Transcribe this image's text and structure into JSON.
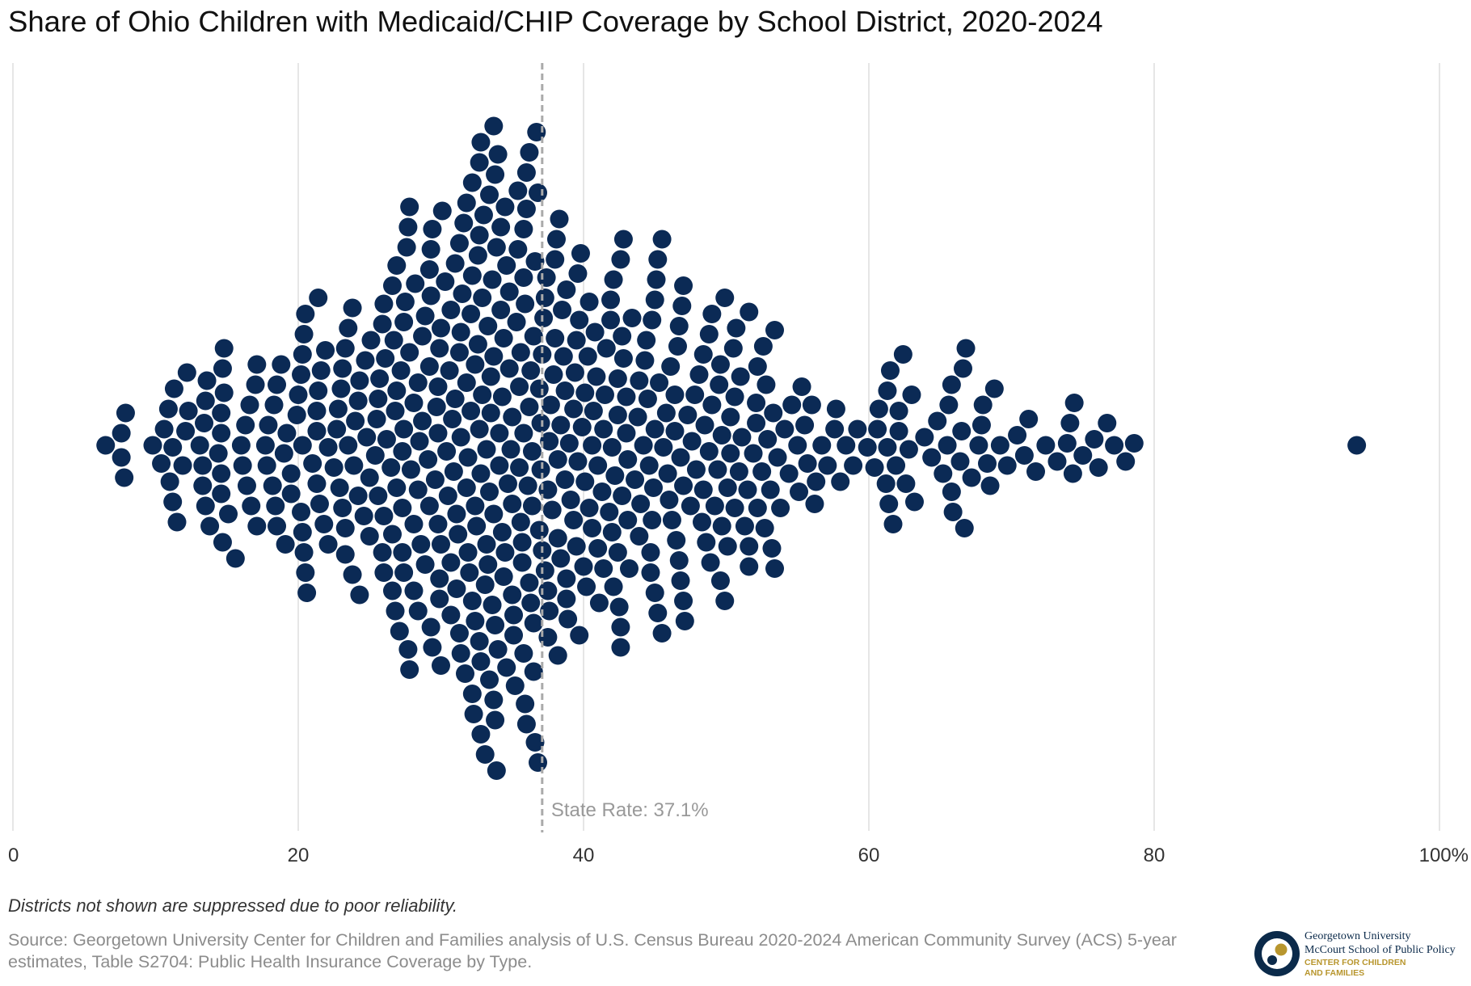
{
  "page": {
    "title": "Share of Ohio Children with Medicaid/CHIP Coverage by School District, 2020-2024",
    "note": "Districts not shown are suppressed due to poor reliability.",
    "source": "Source: Georgetown University Center for Children and Families analysis of U.S. Census Bureau 2020-2024 American Community Survey (ACS) 5-year estimates, Table S2704: Public Health Insurance Coverage by Type.",
    "logo": {
      "line1": "Georgetown University",
      "line2": "McCourt School of Public Policy",
      "line3": "CENTER FOR CHILDREN",
      "line4": "AND FAMILIES"
    }
  },
  "colors": {
    "dot": "#0b2a55",
    "grid": "#dddddd",
    "reference": "#aaaaaa",
    "logo_navy": "#0b2a4a",
    "logo_gold": "#b8962e"
  },
  "chart_data": {
    "type": "scatter",
    "subtype": "beeswarm",
    "title": "Share of Ohio Children with Medicaid/CHIP Coverage by School District, 2020-2024",
    "xlabel": "",
    "ylabel": "",
    "xlim": [
      0,
      100
    ],
    "ticks": [
      0,
      20,
      40,
      60,
      80,
      100
    ],
    "tick_labels": [
      "0",
      "20",
      "40",
      "60",
      "80",
      "100%"
    ],
    "grid": true,
    "reference_line": {
      "value": 37.1,
      "label": "State Rate: 37.1%"
    },
    "n_districts": 600,
    "summary": {
      "min": 6.5,
      "max": 94.2,
      "bulk_range": [
        10,
        55
      ],
      "highest_outlier": 94.2
    },
    "values": [
      6.5,
      7.6,
      7.6,
      7.8,
      7.9,
      9.8,
      10.4,
      10.6,
      10.9,
      11.0,
      11.2,
      11.2,
      11.3,
      11.5,
      11.9,
      12.1,
      12.2,
      12.3,
      13.1,
      13.3,
      13.3,
      13.4,
      13.5,
      13.5,
      13.6,
      13.8,
      14.4,
      14.6,
      14.6,
      14.6,
      14.6,
      14.7,
      14.7,
      14.8,
      14.8,
      15.1,
      15.6,
      16.0,
      16.1,
      16.3,
      16.4,
      16.6,
      16.7,
      17.0,
      17.1,
      17.1,
      17.7,
      17.8,
      17.9,
      18.2,
      18.3,
      18.4,
      18.5,
      18.5,
      18.8,
      19.0,
      19.1,
      19.2,
      19.5,
      19.5,
      19.9,
      20.0,
      20.2,
      20.2,
      20.3,
      20.3,
      20.3,
      20.4,
      20.4,
      20.5,
      20.5,
      20.6,
      21.0,
      21.3,
      21.3,
      21.3,
      21.4,
      21.4,
      21.5,
      21.6,
      21.8,
      21.9,
      22.1,
      22.1,
      22.5,
      22.7,
      22.8,
      22.9,
      23.0,
      23.1,
      23.1,
      23.3,
      23.3,
      23.3,
      23.5,
      23.5,
      23.8,
      23.8,
      23.9,
      24.0,
      24.2,
      24.2,
      24.3,
      24.3,
      24.6,
      24.7,
      24.8,
      25.0,
      25.0,
      25.1,
      25.4,
      25.5,
      25.6,
      25.6,
      25.7,
      25.9,
      25.9,
      26.0,
      26.0,
      26.0,
      26.1,
      26.2,
      26.5,
      26.6,
      26.6,
      26.6,
      26.7,
      26.8,
      26.8,
      26.9,
      26.9,
      26.9,
      27.1,
      27.2,
      27.3,
      27.3,
      27.3,
      27.4,
      27.4,
      27.4,
      27.5,
      27.6,
      27.7,
      27.7,
      27.8,
      27.8,
      27.8,
      27.9,
      28.1,
      28.1,
      28.1,
      28.2,
      28.4,
      28.4,
      28.4,
      28.5,
      28.6,
      28.7,
      28.7,
      28.9,
      28.9,
      29.1,
      29.2,
      29.2,
      29.2,
      29.3,
      29.3,
      29.3,
      29.4,
      29.4,
      29.6,
      29.7,
      29.8,
      29.8,
      29.8,
      29.9,
      29.9,
      29.9,
      30.0,
      30.0,
      30.0,
      30.1,
      30.3,
      30.4,
      30.5,
      30.6,
      30.7,
      30.7,
      30.7,
      30.8,
      30.9,
      31.0,
      31.0,
      31.1,
      31.1,
      31.2,
      31.3,
      31.3,
      31.3,
      31.4,
      31.4,
      31.4,
      31.5,
      31.6,
      31.7,
      31.8,
      31.8,
      31.8,
      31.9,
      31.9,
      32.0,
      32.1,
      32.1,
      32.2,
      32.2,
      32.2,
      32.2,
      32.3,
      32.4,
      32.4,
      32.4,
      32.5,
      32.6,
      32.6,
      32.7,
      32.7,
      32.7,
      32.7,
      32.8,
      32.8,
      32.8,
      32.8,
      32.9,
      32.9,
      33.0,
      33.1,
      33.1,
      33.2,
      33.2,
      33.3,
      33.3,
      33.4,
      33.4,
      33.4,
      33.5,
      33.5,
      33.6,
      33.6,
      33.7,
      33.7,
      33.7,
      33.7,
      33.8,
      33.8,
      33.8,
      33.9,
      33.9,
      34.0,
      34.0,
      34.1,
      34.1,
      34.2,
      34.2,
      34.3,
      34.3,
      34.4,
      34.4,
      34.5,
      34.5,
      34.6,
      34.6,
      34.7,
      34.8,
      34.8,
      34.9,
      35.0,
      35.0,
      35.0,
      35.1,
      35.1,
      35.2,
      35.3,
      35.4,
      35.4,
      35.5,
      35.5,
      35.6,
      35.6,
      35.7,
      35.7,
      35.8,
      35.8,
      35.8,
      35.8,
      35.9,
      35.9,
      36.0,
      36.0,
      36.0,
      36.1,
      36.2,
      36.2,
      36.2,
      36.3,
      36.3,
      36.4,
      36.4,
      36.5,
      36.5,
      36.5,
      36.6,
      36.6,
      36.7,
      36.8,
      36.8,
      36.9,
      36.9,
      37.0,
      37.0,
      37.1,
      37.1,
      37.2,
      37.3,
      37.3,
      37.4,
      37.5,
      37.5,
      37.5,
      37.6,
      37.6,
      37.7,
      37.8,
      37.9,
      38.0,
      38.0,
      38.1,
      38.2,
      38.2,
      38.2,
      38.3,
      38.4,
      38.4,
      38.5,
      38.6,
      38.7,
      38.7,
      38.8,
      38.8,
      38.8,
      38.9,
      39.0,
      39.1,
      39.3,
      39.3,
      39.4,
      39.5,
      39.5,
      39.6,
      39.6,
      39.7,
      39.7,
      39.8,
      39.9,
      40.0,
      40.1,
      40.1,
      40.2,
      40.3,
      40.4,
      40.4,
      40.6,
      40.6,
      40.7,
      40.8,
      40.9,
      41.0,
      41.0,
      41.1,
      41.3,
      41.4,
      41.4,
      41.5,
      41.6,
      41.8,
      41.9,
      41.9,
      42.0,
      42.0,
      42.1,
      42.1,
      42.2,
      42.4,
      42.4,
      42.4,
      42.5,
      42.6,
      42.6,
      42.6,
      42.7,
      42.7,
      42.8,
      42.8,
      43.0,
      43.0,
      43.1,
      43.1,
      43.2,
      43.4,
      43.6,
      43.8,
      43.9,
      43.9,
      44.0,
      44.2,
      44.3,
      44.4,
      44.5,
      44.6,
      44.7,
      44.7,
      44.8,
      44.8,
      44.9,
      45.0,
      45.0,
      45.0,
      45.1,
      45.2,
      45.2,
      45.3,
      45.5,
      45.5,
      45.6,
      45.8,
      45.9,
      46.0,
      46.1,
      46.2,
      46.4,
      46.4,
      46.5,
      46.6,
      46.7,
      46.7,
      46.8,
      46.8,
      46.9,
      47.0,
      47.0,
      47.0,
      47.1,
      47.3,
      47.5,
      47.6,
      47.8,
      47.9,
      48.1,
      48.3,
      48.4,
      48.4,
      48.5,
      48.6,
      48.8,
      48.8,
      48.9,
      49.0,
      49.0,
      49.2,
      49.4,
      49.5,
      49.6,
      49.6,
      49.7,
      49.7,
      49.9,
      49.9,
      50.1,
      50.1,
      50.3,
      50.3,
      50.5,
      50.6,
      50.6,
      50.7,
      50.9,
      51.0,
      51.1,
      51.3,
      51.5,
      51.6,
      51.6,
      51.6,
      51.9,
      52.1,
      52.1,
      52.2,
      52.2,
      52.5,
      52.6,
      52.7,
      52.8,
      52.9,
      53.1,
      53.2,
      53.3,
      53.4,
      53.4,
      53.6,
      53.8,
      54.1,
      54.4,
      54.6,
      55.0,
      55.1,
      55.3,
      55.5,
      55.7,
      56.0,
      56.2,
      56.3,
      56.7,
      57.1,
      57.6,
      57.7,
      58.0,
      58.4,
      58.9,
      59.2,
      59.9,
      60.4,
      60.6,
      60.7,
      61.2,
      61.3,
      61.3,
      61.4,
      61.5,
      61.7,
      61.9,
      62.1,
      62.1,
      62.4,
      62.6,
      62.8,
      63.0,
      63.2,
      63.9,
      64.4,
      64.8,
      65.2,
      65.5,
      65.6,
      65.8,
      65.8,
      65.9,
      66.4,
      66.5,
      66.6,
      66.7,
      66.8,
      67.2,
      67.7,
      67.9,
      68.0,
      68.3,
      68.5,
      68.8,
      69.2,
      69.7,
      70.4,
      70.9,
      71.2,
      71.7,
      72.4,
      73.2,
      73.9,
      74.1,
      74.3,
      74.4,
      75.0,
      75.8,
      76.1,
      76.7,
      77.2,
      78.0,
      78.6,
      94.2
    ]
  }
}
